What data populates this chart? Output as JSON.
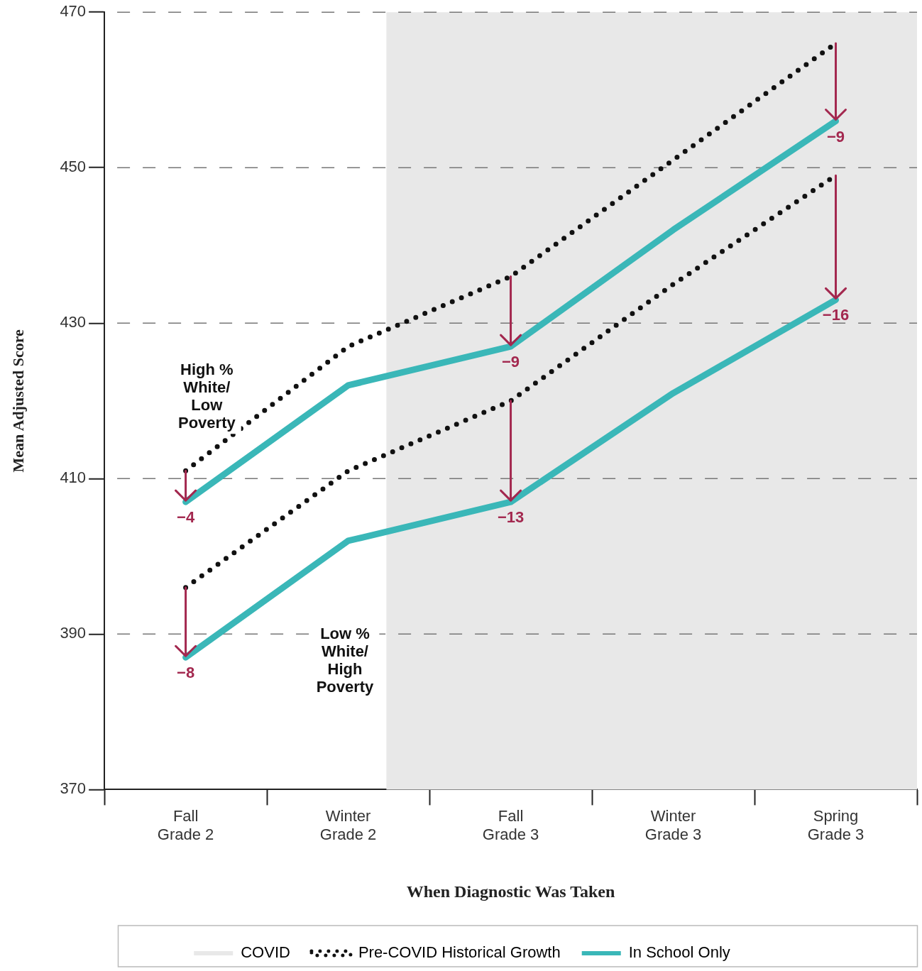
{
  "chart_data": {
    "type": "line",
    "xlabel": "When Diagnostic Was Taken",
    "ylabel": "Mean Adjusted Score",
    "categories": [
      "Fall\nGrade 2",
      "Winter\nGrade 2",
      "Fall\nGrade 3",
      "Winter\nGrade 3",
      "Spring\nGrade 3"
    ],
    "series": [
      {
        "name": "Pre-COVID Historical Growth",
        "color": "#111111",
        "line_style": "dotted",
        "values": [
          411,
          427,
          436,
          451,
          466
        ]
      },
      {
        "name": "In School Only",
        "color": "#3ab7b8",
        "line_style": "solid",
        "values": [
          407,
          422,
          427,
          442,
          456
        ]
      },
      {
        "color": "#111111",
        "line_style": "dotted",
        "values": [
          396,
          411,
          420,
          435,
          449
        ]
      },
      {
        "color": "#3ab7b8",
        "line_style": "solid",
        "values": [
          387,
          402,
          407,
          421,
          433
        ]
      }
    ],
    "ylim": [
      370,
      470
    ],
    "yticks": [
      370,
      390,
      410,
      430,
      450,
      470
    ],
    "grid": "y",
    "legend": "bottom",
    "marker": "none",
    "bands": [
      {
        "axis": "x",
        "from": "Winter\nGrade 2",
        "to": "Spring\nGrade 3",
        "label": "COVID",
        "color": "#e8e8e8"
      }
    ],
    "annotations": [
      "High %\nWhite/\nLow\nPoverty",
      "Low %\nWhite/\nHigh\nPoverty",
      {
        "text": "−4",
        "x": "Fall\nGrade 2",
        "y": 407
      },
      {
        "text": "−8",
        "x": "Fall\nGrade 2",
        "y": 387
      },
      {
        "text": "−9",
        "x": "Fall\nGrade 3",
        "y": 427
      },
      {
        "text": "−13",
        "x": "Fall\nGrade 3",
        "y": 407
      },
      {
        "text": "−9",
        "x": "Spring\nGrade 3",
        "y": 456
      },
      {
        "text": "−16",
        "x": "Spring\nGrade 3",
        "y": 433
      }
    ]
  }
}
